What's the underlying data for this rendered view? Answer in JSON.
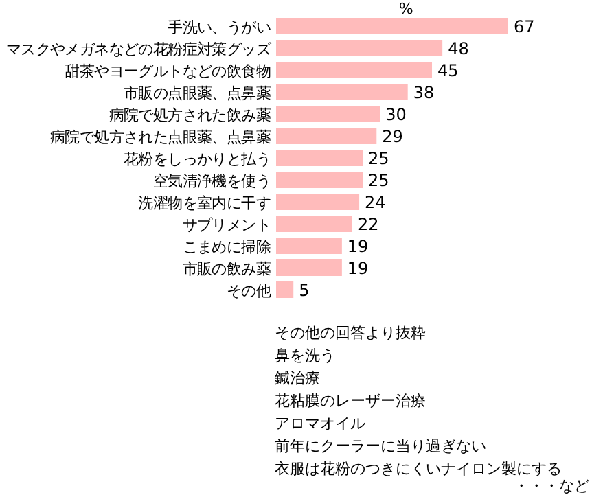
{
  "chart_data": {
    "type": "bar",
    "orientation": "horizontal",
    "xlabel": "%",
    "categories": [
      "手洗い、うがい",
      "マスクやメガネなどの花粉症対策グッズ",
      "甜茶やヨーグルトなどの飲食物",
      "市販の点眼薬、点鼻薬",
      "病院で処方された飲み薬",
      "病院で処方された点眼薬、点鼻薬",
      "花粉をしっかりと払う",
      "空気清浄機を使う",
      "洗濯物を室内に干す",
      "サプリメント",
      "こまめに掃除",
      "市販の飲み薬",
      "その他"
    ],
    "values": [
      67,
      48,
      45,
      38,
      30,
      29,
      25,
      25,
      24,
      22,
      19,
      19,
      5
    ],
    "color": "#ffbbbb",
    "data_labels": true,
    "annotations": [
      "その他の回答より抜粋",
      "鼻を洗う",
      "鍼治療",
      "花粘膜のレーザー治療",
      "アロマオイル",
      "前年にクーラーに当り過ぎない",
      "衣服は花粉のつきにくいナイロン製にする",
      "・・・など"
    ]
  }
}
